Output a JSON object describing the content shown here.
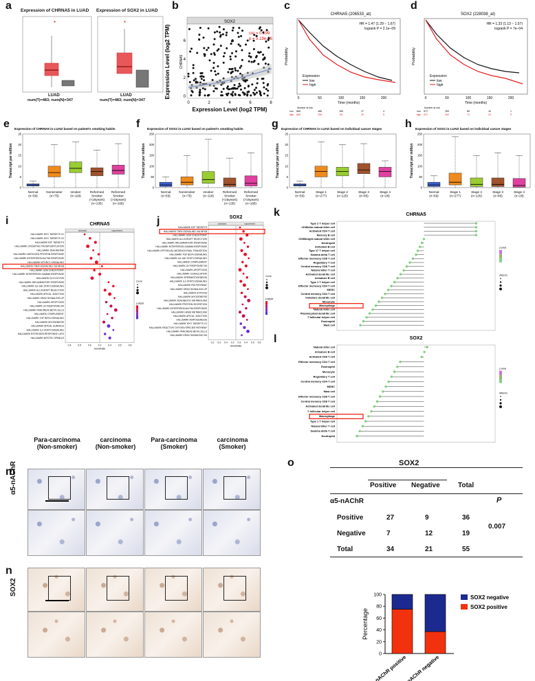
{
  "panels": {
    "a": {
      "label": "a",
      "title1": "Expression of CHRNA5 in LUAD",
      "title2": "Expression of SOX2 in LUAD",
      "xlabel": "LUAD",
      "num": "num(T)=483; num(N)=347"
    },
    "b": {
      "label": "b",
      "strip": "SOX2",
      "ylabel": "Expression Level (log2 TPM)",
      "ygene": "CHRNA5",
      "xlabel": "Expression Level (log2 TPM)",
      "cor": "cor = 0.199",
      "p": "p = 5.19e-06",
      "xticks": [
        "0",
        "2",
        "4",
        "6",
        "8"
      ],
      "yticks": [
        "0",
        "2",
        "4",
        "6"
      ]
    },
    "c": {
      "label": "c",
      "title": "CHRNA5 (206533_at)",
      "hr": "HR = 1.47 (1.29 − 1.67)",
      "logrank": "logrank P = 2.1e−09",
      "ylabel": "Probability",
      "xlabel": "Time (months)",
      "legend_title": "Expression",
      "legend_low": "low",
      "legend_high": "high",
      "xticks": [
        "0",
        "50",
        "100",
        "150",
        "200"
      ],
      "yticks": [
        "0.0",
        "0.2",
        "0.4",
        "0.6",
        "0.8",
        "1.0"
      ],
      "risk_title": "Number at risk",
      "risk_low": [
        "low",
        "866",
        "488",
        "155",
        "27",
        "4"
      ],
      "risk_high": [
        "high",
        "865",
        "339",
        "96",
        "20",
        "5"
      ]
    },
    "d": {
      "label": "d",
      "title": "SOX2 (228038_at)",
      "hr": "HR = 1.33 (1.13 − 1.57)",
      "logrank": "logrank P = 7e−04",
      "ylabel": "Probability",
      "xlabel": "Time (months)",
      "legend_title": "Expression",
      "legend_low": "low",
      "legend_high": "high",
      "xticks": [
        "0",
        "50",
        "100",
        "150",
        "200"
      ],
      "yticks": [
        "0.0",
        "0.2",
        "0.4",
        "0.6",
        "0.8",
        "1.0"
      ],
      "risk_title": "Number at risk",
      "risk_low": [
        "low",
        "572",
        "283",
        "85",
        "16",
        "1"
      ],
      "risk_high": [
        "high",
        "572",
        "262",
        "74",
        "20",
        "5"
      ]
    },
    "e": {
      "label": "e",
      "title": "Expression of CHRNA5 in LUAD based on patient's smoking habits",
      "ylabel": "Transcript per million",
      "cats": [
        "Normal\n(n=59)",
        "Nonsmoker\n(n=75)",
        "smoker\n(n=118)",
        "Reformed\nSmoker\n(<15years)\n(n=135)",
        "Reformed\nSmoker\n(>15years)\n(n=168)"
      ],
      "yticks": [
        "0",
        "5",
        "10",
        "15",
        "20",
        "25"
      ]
    },
    "f": {
      "label": "f",
      "title": "Expression of SOX2 in LUAD based on patient's smoking habits",
      "ylabel": "Transcript per million",
      "cats": [
        "Normal\n(n=59)",
        "Nonsmoker\n(n=75)",
        "smoker\n(n=118)",
        "Reformed\nSmoker\n(<15years)\n(n=135)",
        "Reformed\nSmoker\n(>15years)\n(n=168)"
      ],
      "yticks": [
        "0",
        "50",
        "100",
        "150",
        "200",
        "250"
      ]
    },
    "g": {
      "label": "g",
      "title": "Expression of CHRNA5 in LUAD based on individual cancer stages",
      "ylabel": "Transcript per million",
      "cats": [
        "Normal\n(n=59)",
        "Stage 1\n(n=277)",
        "Stage 2\n(n=125)",
        "Stage 3\n(n=85)",
        "Stage 4\n(n=28)"
      ],
      "yticks": [
        "0",
        "5",
        "10",
        "15",
        "20",
        "25"
      ]
    },
    "h": {
      "label": "h",
      "title": "Expression of SOX2 in LUAD based on individual cancer stages",
      "ylabel": "Transcript per million",
      "cats": [
        "Normal\n(n=59)",
        "Stage 1\n(n=277)",
        "Stage 2\n(n=125)",
        "Stage 3\n(n=85)",
        "Stage 4\n(n=28)"
      ],
      "yticks": [
        "0",
        "50",
        "100",
        "150",
        "200",
        "250"
      ]
    },
    "i": {
      "label": "i",
      "title": "CHRNA5",
      "xlabel": "GeneRatio",
      "hdr_left": "activated",
      "hdr_right": "suppressed",
      "legend_count": "Count",
      "legend_p": "p.adjust",
      "terms": [
        "HALLMARK MYC TARGETS V1",
        "HALLMARK MYC TARGETS V2",
        "HALLMARK E2F TARGETS",
        "HALLMARK OXIDATIVE PHOSPHORYLATION",
        "HALLMARK DNA REPAIR",
        "HALLMARK UNFOLDED PROTEIN RESPONSE",
        "HALLMARK INTERFERON ALPHA RESPONSE",
        "HALLMARK MTORC1 SIGNALING",
        "HALLMARK TNFA SIGNALING VIA NFKB",
        "HALLMARK G2M CHECKPOINT",
        "HALLMARK INTERFERON GAMMA RESPONSE",
        "HALLMARK GLYCOLYSIS",
        "HALLMARK INFLAMMATORY RESPONSE",
        "HALLMARK IL6 JAK STAT3 SIGNALING",
        "HALLMARK ALLOGRAFT REJECTION",
        "HALLMARK APICAL JUNCTION",
        "HALLMARK KRAS SIGNALING UP",
        "HALLMARK APOPTOSIS",
        "HALLMARK UV RESPONSE DN",
        "HALLMARK PANCREAS BETA CELLS",
        "HALLMARK COMPLEMENT",
        "HALLMARK TGF BETA SIGNALING",
        "HALLMARK MYOGENESIS",
        "HALLMARK APICAL SURFACE",
        "HALLMARK IL2 STAT5 SIGNALING",
        "HALLMARK ESTROGEN RESPONSE LATE",
        "HALLMARK MITOTIC SPINDLE"
      ],
      "xticks": [
        "0.4",
        "0.5",
        "0.6",
        "0.2",
        "0.4",
        "0.5",
        "0.6"
      ],
      "highlight": "HALLMARK TNFA SIGNALING VIA NFKB"
    },
    "j": {
      "label": "j",
      "title": "SOX2",
      "xlabel": "GeneRatio",
      "hdr_left": "activated",
      "hdr_right": "suppressed",
      "legend_count": "Count",
      "legend_p": "p.adjust",
      "terms": [
        "HALLMARK E2F TARGETS",
        "HALLMARK TNFA SIGNALING VIA NFKB",
        "HALLMARK G2M CHECKPOINT",
        "HALLMARK ALLOGRAFT REJECTION",
        "HALLMARK INFLAMMATORY RESPONSE",
        "HALLMARK INTERFERON GAMMA RESPONSE",
        "HALLMARK EPITHELIAL MESENCHYMAL TRANSITION",
        "HALLMARK TGF BETA SIGNALING",
        "HALLMARK IL6 JAK STAT3 SIGNALING",
        "HALLMARK COMPLEMENT",
        "HALLMARK UV RESPONSE DN",
        "HALLMARK APOPTOSIS",
        "HALLMARK COAGULATION",
        "HALLMARK SPERMATOGENESIS",
        "HALLMARK IL2 STAT5 SIGNALING",
        "HALLMARK P53 PATHWAY",
        "HALLMARK KRAS SIGNALING UP",
        "HALLMARK HYPOXIA",
        "HALLMARK MYOGENESIS",
        "HALLMARK XENOBIOTIC METABOLISM",
        "HALLMARK PROTEIN SECRETION",
        "HALLMARK INTERFERON ALPHA RESPONSE",
        "HALLMARK HEME METABOLISM",
        "HALLMARK APICAL JUNCTION",
        "HALLMARK ADIPOGENESIS",
        "HALLMARK MYC TARGETS V1",
        "HALLMARK REACTIVE OXYGEN SPECIES PATHWAY",
        "HALLMARK PANCREAS BETA CELLS",
        "HALLMARK KRAS SIGNALING DN"
      ],
      "xticks": [
        "0.2",
        "0.3",
        "0.4",
        "0.2",
        "0.3",
        "0.4",
        "0.5",
        "0.6"
      ],
      "highlight": "HALLMARK TNFA SIGNALING VIA NFKB"
    },
    "k": {
      "label": "k",
      "title": "CHRNA5",
      "legend_p": "p.value",
      "legend_abs": "abs(cor)",
      "cells": [
        "Type 2 T helper cell",
        "CD56dim natural killer cell",
        "Activated CD4 T cell",
        "Memory B cell",
        "CD56bright natural killer cell",
        "Neutrophil",
        "Activated B cell",
        "Type 17 T helper cell",
        "Gamma delta T cell",
        "Effector memeory CD8 T cell",
        "Regulatory T cell",
        "Central memory CD8 T cell",
        "Natural killer T cell",
        "Activated dendritic cell",
        "Immature B cell",
        "Type 1 T helper cell",
        "Effector memeory CD4 T cell",
        "MDSC",
        "Central memory CD4 T cell",
        "Immature dendritic cell",
        "Monocyte",
        "Macrophage",
        "Natural killer cell",
        "Plasmacytoid dendritic cell",
        "T follicular helper cell",
        "Eosinophil",
        "Mast cell"
      ],
      "highlight": "Macrophage"
    },
    "l": {
      "label": "l",
      "title": "SOX2",
      "legend_p": "p.value",
      "legend_abs": "abs(cor)",
      "cells": [
        "Natural killer cell",
        "Immature B cell",
        "Activated CD8 T cell",
        "Effector memeory CD4 T cell",
        "Eosinophil",
        "Monocyte",
        "Regulatory T cell",
        "Central memory CD4 T cell",
        "MDSC",
        "Mast cell",
        "Effector memeory CD8 T cell",
        "Central memory CD8 T cell",
        "Activated dendritic cell",
        "T follicular helper cell",
        "Macrophage",
        "Type 1 T helper cell",
        "Natural killer T cell",
        "Gamma delta T cell",
        "Neutrophil"
      ],
      "highlight": "Macrophage"
    },
    "m": {
      "label": "m",
      "row_label": "α5-nAChR",
      "cols": [
        "Para-carcinoma\n(Non-smoker)",
        "carcinoma\n(Non-smoker)",
        "Para-carcinoma\n(Smoker)",
        "carcinoma\n(Smoker)"
      ]
    },
    "n": {
      "label": "n",
      "row_label": "SOX2"
    },
    "o": {
      "label": "o",
      "header": "SOX2",
      "col_positive": "Positive",
      "col_negative": "Negative",
      "col_total": "Total",
      "row_head": "α5-nAChR",
      "p_head": "P",
      "rows": [
        {
          "name": "Positive",
          "pos": "27",
          "neg": "9",
          "total": "36"
        },
        {
          "name": "Negative",
          "pos": "7",
          "neg": "12",
          "total": "19"
        },
        {
          "name": "Total",
          "pos": "34",
          "neg": "21",
          "total": "55"
        }
      ],
      "p_value": "0.007"
    }
  },
  "chart_data": [
    {
      "type": "bar",
      "stacked": true,
      "ylabel": "Percentage",
      "categories": [
        "α5-nAChR positive",
        "α5-nAChR negative"
      ],
      "series": [
        {
          "name": "SOX2 positive",
          "values": [
            75,
            37
          ],
          "color": "#f2320f"
        },
        {
          "name": "SOX2 negative",
          "values": [
            25,
            63
          ],
          "color": "#1c2a8f"
        }
      ],
      "yticks": [
        "0",
        "20",
        "40",
        "60",
        "80",
        "100"
      ],
      "ylim": [
        0,
        100
      ],
      "legend": "top-right"
    }
  ],
  "colors": {
    "red": "#d62728",
    "dark": "#222",
    "gray": "#777",
    "bar_pos": "#f2320f",
    "bar_neg": "#1c2a8f",
    "box_blue": "#3a5fcd",
    "box_orange": "#f08a1c",
    "box_green": "#9acd32",
    "box_brown": "#a0522d",
    "box_magenta": "#e040a0"
  }
}
